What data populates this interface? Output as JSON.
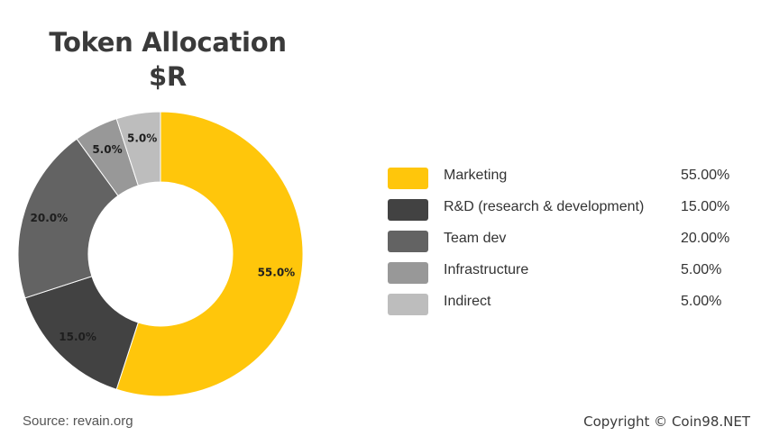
{
  "chart_data": {
    "type": "pie",
    "title": "Token Allocation",
    "subtitle": "$R",
    "categories": [
      "Marketing",
      "R&D (research & development)",
      "Team dev",
      "Infrastructure",
      "Indirect"
    ],
    "values": [
      55.0,
      15.0,
      20.0,
      5.0,
      5.0
    ],
    "slice_labels": [
      "55.0%",
      "15.0%",
      "20.0%",
      "5.0%",
      "5.0%"
    ],
    "legend_values": [
      "55.00%",
      "15.00%",
      "20.00%",
      "5.00%",
      "5.00%"
    ],
    "colors": [
      "#ffc60b",
      "#424242",
      "#636363",
      "#989898",
      "#bdbdbd"
    ],
    "donut": true,
    "legend_position": "right"
  },
  "footer": {
    "source": "Source: revain.org",
    "copyright": "Copyright © Coin98.NET"
  }
}
